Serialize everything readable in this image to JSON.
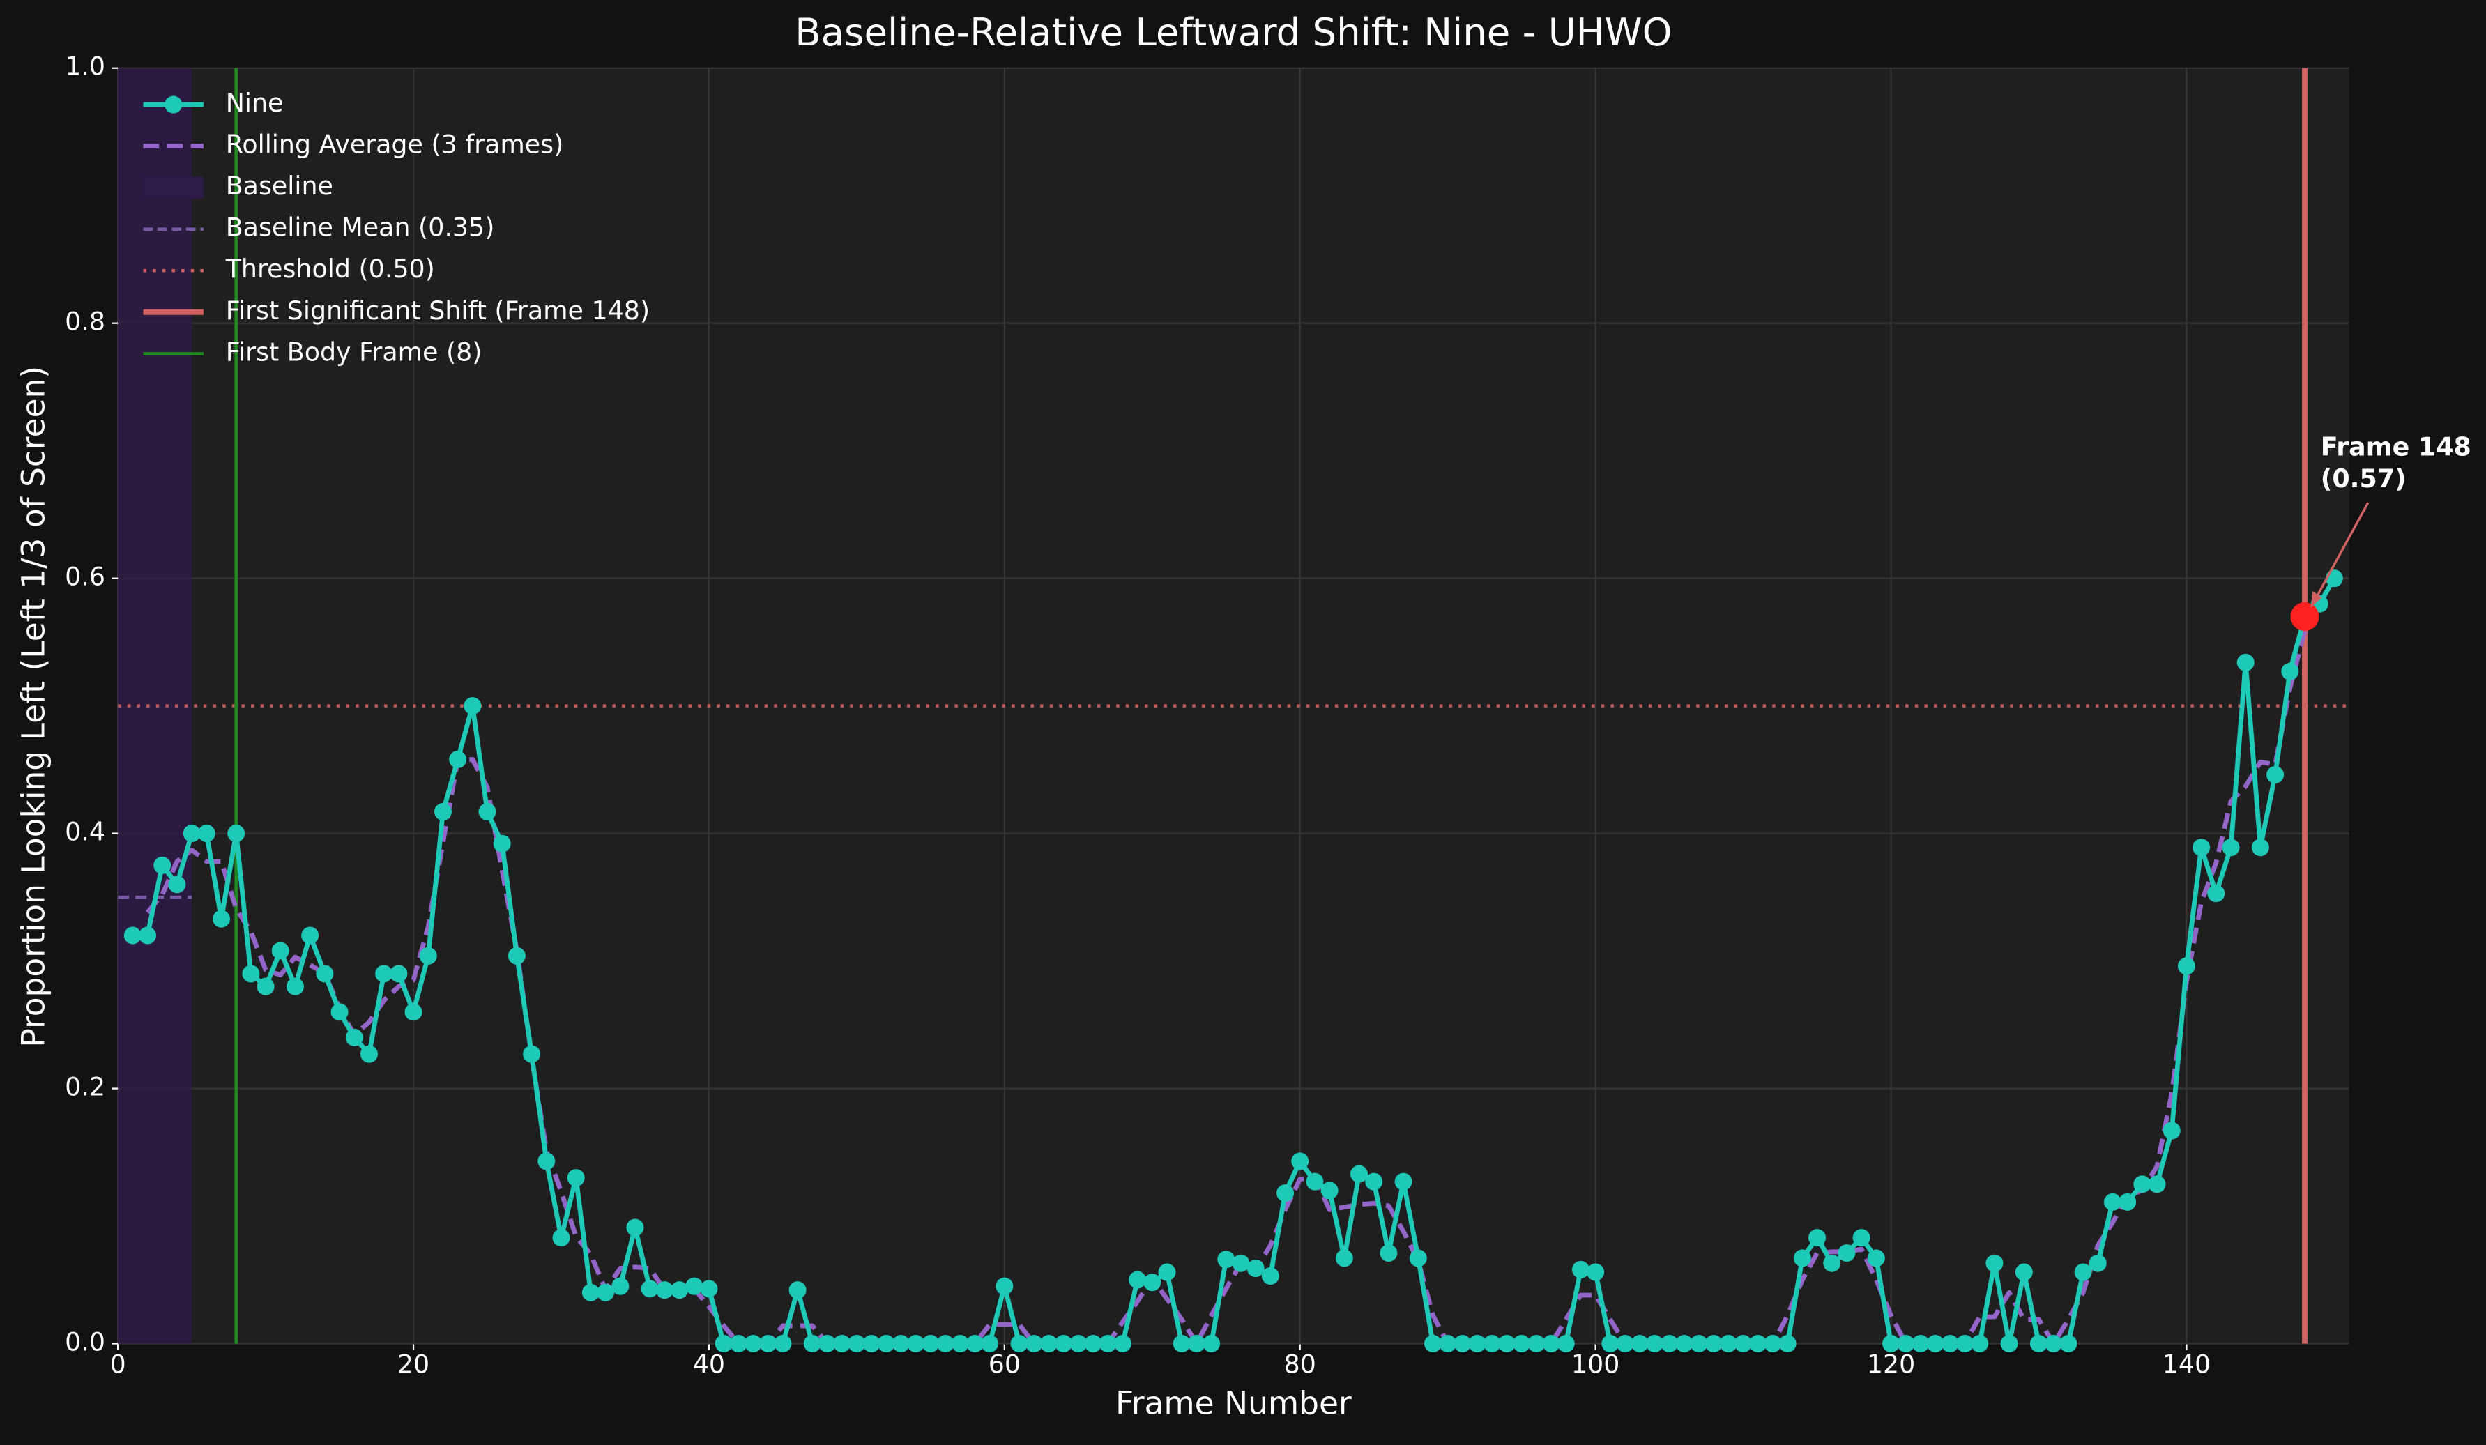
{
  "chart_data": {
    "type": "line",
    "title": "Baseline-Relative Leftward Shift: Nine - UHWO",
    "xlabel": "Frame Number",
    "ylabel": "Proportion Looking Left (Left 1/3 of Screen)",
    "x": [
      1,
      2,
      3,
      4,
      5,
      6,
      7,
      8,
      9,
      10,
      11,
      12,
      13,
      14,
      15,
      16,
      17,
      18,
      19,
      20,
      21,
      22,
      23,
      24,
      25,
      26,
      27,
      28,
      29,
      30,
      31,
      32,
      33,
      34,
      35,
      36,
      37,
      38,
      39,
      40,
      41,
      42,
      43,
      44,
      45,
      46,
      47,
      48,
      49,
      50,
      51,
      52,
      53,
      54,
      55,
      56,
      57,
      58,
      59,
      60,
      61,
      62,
      63,
      64,
      65,
      66,
      67,
      68,
      69,
      70,
      71,
      72,
      73,
      74,
      75,
      76,
      77,
      78,
      79,
      80,
      81,
      82,
      83,
      84,
      85,
      86,
      87,
      88,
      89,
      90,
      91,
      92,
      93,
      94,
      95,
      96,
      97,
      98,
      99,
      100,
      101,
      102,
      103,
      104,
      105,
      106,
      107,
      108,
      109,
      110,
      111,
      112,
      113,
      114,
      115,
      116,
      117,
      118,
      119,
      120,
      121,
      122,
      123,
      124,
      125,
      126,
      127,
      128,
      129,
      130,
      131,
      132,
      133,
      134,
      135,
      136,
      137,
      138,
      139,
      140,
      141,
      142,
      143,
      144,
      145,
      146,
      147,
      148,
      149,
      150
    ],
    "series": [
      {
        "name": "Nine",
        "color": "#1fc9b8",
        "marker": true,
        "dash": "solid",
        "values": [
          0.32,
          0.32,
          0.375,
          0.36,
          0.4,
          0.4,
          0.333,
          0.4,
          0.29,
          0.28,
          0.308,
          0.28,
          0.32,
          0.29,
          0.26,
          0.24,
          0.227,
          0.29,
          0.29,
          0.26,
          0.304,
          0.417,
          0.458,
          0.5,
          0.417,
          0.392,
          0.304,
          0.227,
          0.143,
          0.083,
          0.13,
          0.04,
          0.04,
          0.045,
          0.091,
          0.043,
          0.042,
          0.042,
          0.045,
          0.043,
          0,
          0,
          0,
          0,
          0,
          0.042,
          0,
          0,
          0,
          0,
          0,
          0,
          0,
          0,
          0,
          0,
          0,
          0,
          0,
          0.045,
          0,
          0,
          0,
          0,
          0,
          0,
          0,
          0,
          0.05,
          0.048,
          0.056,
          0,
          0,
          0,
          0.066,
          0.063,
          0.059,
          0.053,
          0.118,
          0.143,
          0.127,
          0.12,
          0.067,
          0.133,
          0.127,
          0.071,
          0.127,
          0.067,
          0,
          0,
          0,
          0,
          0,
          0,
          0,
          0,
          0,
          0,
          0.058,
          0.056,
          0,
          0,
          0,
          0,
          0,
          0,
          0,
          0,
          0,
          0,
          0,
          0,
          0,
          0.067,
          0.083,
          0.063,
          0.071,
          0.083,
          0.067,
          0,
          0,
          0,
          0,
          0,
          0,
          0,
          0.063,
          0,
          0.056,
          0,
          0,
          0,
          0.056,
          0.063,
          0.111,
          0.111,
          0.125,
          0.125,
          0.167,
          0.296,
          0.389,
          0.353,
          0.389,
          0.534,
          0.389,
          0.446,
          0.527,
          0.57,
          0.58,
          0.6
        ]
      },
      {
        "name": "Rolling Average (3 frames)",
        "color": "#9365c9",
        "marker": false,
        "dash": "dashed",
        "values": [
          null,
          0.338,
          0.352,
          0.378,
          0.387,
          0.378,
          0.378,
          0.341,
          0.323,
          0.293,
          0.289,
          0.303,
          0.297,
          0.29,
          0.263,
          0.242,
          0.252,
          0.269,
          0.28,
          0.285,
          0.327,
          0.393,
          0.458,
          0.458,
          0.436,
          0.371,
          0.308,
          0.225,
          0.151,
          0.119,
          0.084,
          0.07,
          0.042,
          0.059,
          0.06,
          0.059,
          0.042,
          0.043,
          0.043,
          0.029,
          0.014,
          0,
          0,
          0,
          0.014,
          0.014,
          0.014,
          0,
          0,
          0,
          0,
          0,
          0,
          0,
          0,
          0,
          0,
          0,
          0.015,
          0.015,
          0.015,
          0,
          0,
          0,
          0,
          0,
          0,
          0.017,
          0.033,
          0.051,
          0.035,
          0.019,
          0,
          0.022,
          0.043,
          0.063,
          0.058,
          0.077,
          0.105,
          0.129,
          0.13,
          0.105,
          0.107,
          0.109,
          0.11,
          0.108,
          0.088,
          0.065,
          0.022,
          0,
          0,
          0,
          0,
          0,
          0,
          0,
          0,
          0.019,
          0.038,
          0.038,
          0.019,
          0,
          0,
          0,
          0,
          0,
          0,
          0,
          0,
          0,
          0,
          0,
          0.022,
          0.05,
          0.071,
          0.072,
          0.072,
          0.074,
          0.05,
          0.022,
          0,
          0,
          0,
          0,
          0,
          0.021,
          0.021,
          0.04,
          0.019,
          0.019,
          0,
          0.019,
          0.04,
          0.077,
          0.095,
          0.116,
          0.12,
          0.139,
          0.196,
          0.284,
          0.346,
          0.377,
          0.425,
          0.437,
          0.456,
          0.454,
          0.514,
          0.559,
          0.583,
          null
        ]
      }
    ],
    "baseline": {
      "name": "Baseline",
      "range": [
        0,
        5
      ],
      "color": "#2e1a48"
    },
    "baseline_mean": {
      "name": "Baseline Mean (0.35)",
      "value": 0.35,
      "color": "#7a5aa8"
    },
    "threshold": {
      "name": "Threshold (0.50)",
      "value": 0.5,
      "color": "#d06262"
    },
    "first_shift": {
      "name": "First Significant Shift (Frame 148)",
      "x": 148,
      "color": "#d06262"
    },
    "first_body": {
      "name": "First Body Frame (8)",
      "x": 8,
      "color": "#1f8a1f"
    },
    "annotation": {
      "lines": [
        "Frame 148",
        "(0.57)"
      ],
      "x": 148,
      "y": 0.57,
      "color": "#ff2020"
    },
    "xlim": [
      0,
      151
    ],
    "ylim": [
      0,
      1
    ],
    "xticks": [
      0,
      20,
      40,
      60,
      80,
      100,
      120,
      140
    ],
    "yticks": [
      {
        "value": 0,
        "label": "0.0"
      },
      0.2,
      0.4,
      0.6,
      0.8,
      {
        "value": 1,
        "label": "1.0"
      }
    ],
    "grid": true,
    "legend": "upper left"
  }
}
